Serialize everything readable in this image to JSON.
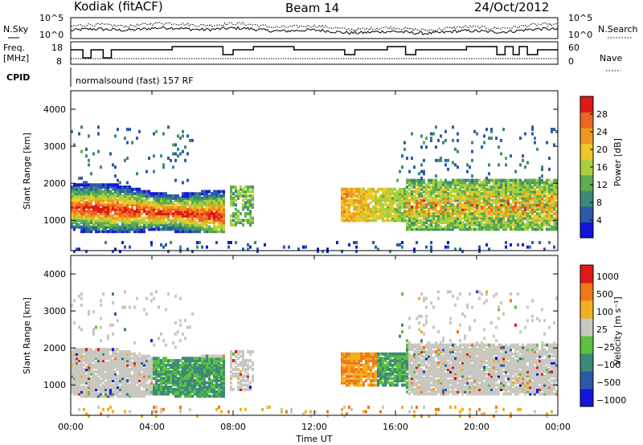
{
  "header": {
    "station": "Kodiak (fitACF)",
    "beam": "Beam 14",
    "date": "24/Oct/2012"
  },
  "noise_panel": {
    "left_label": "N.Sky",
    "right_label": "N.Search",
    "left_ticks": [
      "10^5",
      "10^0"
    ],
    "right_ticks": [
      "10^5",
      "10^0"
    ]
  },
  "freq_panel": {
    "left_label_line1": "Freq.",
    "left_label_line2": "[MHz]",
    "right_label": "Nave",
    "left_ticks": [
      "18",
      "8"
    ],
    "right_ticks": [
      "60",
      "0"
    ]
  },
  "cpid": {
    "label": "CPID",
    "text": "normalsound (fast) 157 RF"
  },
  "colors": {
    "ground_scatter": "#c8c8c0",
    "power_scale": [
      "#1414dc",
      "#2c5aa8",
      "#3c8a78",
      "#5cac50",
      "#a8d03c",
      "#f0c828",
      "#f09820",
      "#ec6420",
      "#e01818"
    ],
    "velocity_scale": [
      "#1414dc",
      "#2c5aa8",
      "#3c8a78",
      "#5cc040",
      "#c8c8c0",
      "#f0b020",
      "#f07818",
      "#e01818"
    ]
  },
  "chart_data": [
    {
      "type": "heatmap",
      "name": "power",
      "ylabel": "Slant Range [km]",
      "yticks": [
        "4000",
        "3000",
        "2000",
        "1000"
      ],
      "ylim": [
        180,
        4500
      ],
      "colorbar_label": "Power [dB]",
      "colorbar_ticks": [
        "28",
        "24",
        "20",
        "16",
        "12",
        "8",
        "4"
      ]
    },
    {
      "type": "heatmap",
      "name": "velocity",
      "ylabel": "Slant Range [km]",
      "yticks": [
        "4000",
        "3000",
        "2000",
        "1000"
      ],
      "ylim": [
        180,
        4500
      ],
      "colorbar_label": "Velocity [m s⁻¹]",
      "colorbar_ticks": [
        "1000",
        "500",
        "100",
        "25",
        "−25",
        "−100",
        "−500",
        "−1000"
      ]
    }
  ],
  "x_axis": {
    "label": "Time UT",
    "ticks": [
      "00:00",
      "04:00",
      "08:00",
      "12:00",
      "16:00",
      "20:00",
      "00:00"
    ],
    "range_hours": [
      0,
      24
    ]
  }
}
